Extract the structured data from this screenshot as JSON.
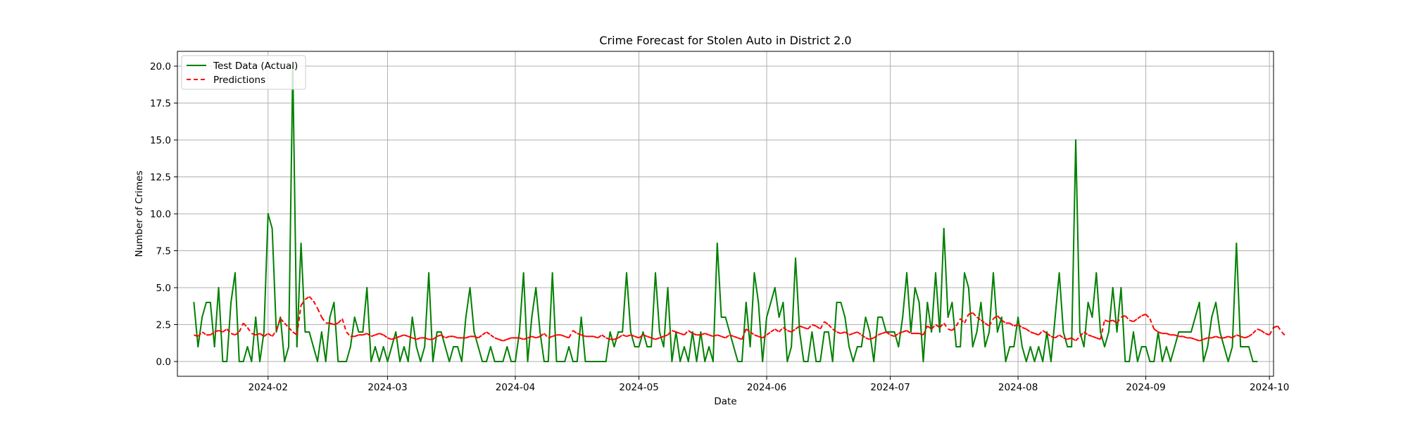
{
  "chart_data": {
    "type": "line",
    "title": "Crime Forecast for Stolen Auto in District 2.0",
    "xlabel": "Date",
    "ylabel": "Number of Crimes",
    "x_start": "2024-01-14",
    "x_end": "2024-09-22",
    "xlim": [
      "2024-01-10",
      "2024-10-02"
    ],
    "ylim": [
      -1.0,
      21.0
    ],
    "x_ticks": [
      "2024-02-01",
      "2024-03-01",
      "2024-04-01",
      "2024-05-01",
      "2024-06-01",
      "2024-07-01",
      "2024-08-01",
      "2024-09-01",
      "2024-10-01"
    ],
    "x_tick_labels": [
      "2024-02",
      "2024-03",
      "2024-04",
      "2024-05",
      "2024-06",
      "2024-07",
      "2024-08",
      "2024-09",
      "2024-10"
    ],
    "y_ticks": [
      0.0,
      2.5,
      5.0,
      7.5,
      10.0,
      12.5,
      15.0,
      17.5,
      20.0
    ],
    "y_tick_labels": [
      "0.0",
      "2.5",
      "5.0",
      "7.5",
      "10.0",
      "12.5",
      "15.0",
      "17.5",
      "20.0"
    ],
    "grid": true,
    "legend": "top-left",
    "series": [
      {
        "name": "Test Data (Actual)",
        "color": "#008000",
        "style": "solid",
        "values": [
          4,
          1,
          3,
          4,
          4,
          1,
          5,
          0,
          0,
          4,
          6,
          0,
          0,
          1,
          0,
          3,
          0,
          2,
          10,
          9,
          2,
          3,
          0,
          1,
          20,
          1,
          8,
          2,
          2,
          1,
          0,
          2,
          0,
          3,
          4,
          0,
          0,
          0,
          1,
          3,
          2,
          2,
          5,
          0,
          1,
          0,
          1,
          0,
          1,
          2,
          0,
          1,
          0,
          3,
          1,
          0,
          1,
          6,
          0,
          2,
          2,
          1,
          0,
          1,
          1,
          0,
          3,
          5,
          2,
          1,
          0,
          0,
          1,
          0,
          0,
          0,
          1,
          0,
          0,
          2,
          6,
          0,
          3,
          5,
          2,
          0,
          0,
          6,
          0,
          0,
          0,
          1,
          0,
          0,
          3,
          0,
          0,
          0,
          0,
          0,
          0,
          2,
          1,
          2,
          2,
          6,
          2,
          1,
          1,
          2,
          1,
          1,
          6,
          2,
          1,
          5,
          0,
          2,
          0,
          1,
          0,
          2,
          0,
          2,
          0,
          1,
          0,
          8,
          3,
          3,
          2,
          1,
          0,
          0,
          4,
          1,
          6,
          4,
          0,
          3,
          4,
          5,
          3,
          4,
          0,
          1,
          7,
          2,
          0,
          0,
          2,
          0,
          0,
          2,
          2,
          0,
          4,
          4,
          3,
          1,
          0,
          1,
          1,
          3,
          2,
          0,
          3,
          3,
          2,
          2,
          2,
          1,
          3,
          6,
          2,
          5,
          4,
          0,
          4,
          2,
          6,
          2,
          9,
          3,
          4,
          1,
          1,
          6,
          5,
          1,
          2,
          4,
          1,
          2,
          6,
          2,
          3,
          0,
          1,
          1,
          3,
          1,
          0,
          1,
          0,
          1,
          0,
          2,
          0,
          3,
          6,
          2,
          1,
          1,
          15,
          2,
          1,
          4,
          3,
          6,
          2,
          1,
          2,
          5,
          2,
          5,
          0,
          0,
          2,
          0,
          1,
          1,
          0,
          0,
          2,
          0,
          1,
          0,
          1,
          2,
          2,
          2,
          2,
          3,
          4,
          0,
          1,
          3,
          4,
          2,
          1,
          0,
          1,
          8,
          1,
          1,
          1,
          0,
          0
        ]
      },
      {
        "name": "Predictions",
        "color": "#ff0000",
        "style": "dashed",
        "values": [
          1.8,
          1.7,
          2.0,
          1.8,
          1.8,
          2.0,
          2.1,
          2.0,
          2.2,
          1.9,
          1.8,
          2.0,
          2.6,
          2.3,
          1.9,
          1.8,
          1.9,
          1.7,
          1.9,
          1.7,
          2.1,
          2.9,
          2.6,
          2.3,
          2.0,
          1.8,
          3.8,
          4.2,
          4.4,
          4.1,
          3.6,
          3.0,
          2.6,
          2.6,
          2.5,
          2.6,
          2.9,
          2.0,
          1.7,
          1.7,
          1.8,
          1.8,
          1.9,
          1.7,
          1.8,
          1.9,
          1.8,
          1.6,
          1.5,
          1.6,
          1.7,
          1.8,
          1.7,
          1.6,
          1.5,
          1.6,
          1.6,
          1.5,
          1.5,
          1.7,
          1.8,
          1.6,
          1.7,
          1.7,
          1.6,
          1.6,
          1.6,
          1.7,
          1.7,
          1.6,
          1.8,
          2.0,
          1.8,
          1.6,
          1.5,
          1.4,
          1.5,
          1.6,
          1.6,
          1.6,
          1.5,
          1.6,
          1.7,
          1.6,
          1.7,
          1.9,
          1.6,
          1.7,
          1.8,
          1.8,
          1.7,
          1.6,
          2.1,
          1.9,
          1.8,
          1.7,
          1.7,
          1.7,
          1.6,
          1.8,
          1.6,
          1.5,
          1.5,
          1.6,
          1.8,
          1.7,
          1.8,
          1.7,
          1.6,
          1.8,
          1.7,
          1.6,
          1.5,
          1.6,
          1.7,
          1.8,
          2.1,
          2.0,
          1.9,
          1.8,
          2.1,
          1.9,
          1.8,
          1.8,
          1.9,
          1.8,
          1.7,
          1.8,
          1.7,
          1.6,
          1.8,
          1.7,
          1.6,
          1.5,
          2.2,
          2.0,
          1.8,
          1.7,
          1.6,
          1.8,
          2.0,
          2.2,
          2.0,
          2.3,
          2.1,
          2.0,
          2.2,
          2.4,
          2.3,
          2.2,
          2.5,
          2.4,
          2.2,
          2.7,
          2.5,
          2.2,
          2.0,
          1.9,
          2.0,
          1.8,
          1.9,
          2.0,
          1.8,
          1.6,
          1.5,
          1.6,
          1.8,
          1.9,
          2.0,
          1.8,
          1.7,
          1.9,
          2.0,
          2.1,
          1.9,
          1.9,
          1.9,
          1.8,
          2.4,
          2.2,
          2.5,
          2.3,
          2.6,
          2.2,
          2.1,
          2.4,
          2.9,
          2.6,
          3.2,
          3.3,
          3.0,
          2.8,
          2.6,
          2.4,
          2.9,
          3.1,
          2.8,
          2.6,
          2.6,
          2.4,
          2.5,
          2.3,
          2.2,
          2.0,
          1.9,
          1.8,
          2.1,
          1.9,
          1.7,
          1.6,
          1.8,
          1.6,
          1.5,
          1.6,
          1.4,
          1.7,
          2.0,
          1.8,
          1.7,
          1.6,
          1.5,
          2.8,
          2.7,
          2.8,
          2.6,
          3.0,
          3.1,
          2.8,
          2.7,
          2.9,
          3.1,
          3.2,
          2.9,
          2.2,
          2.0,
          1.9,
          1.9,
          1.8,
          1.8,
          1.7,
          1.7,
          1.6,
          1.6,
          1.5,
          1.4,
          1.5,
          1.6,
          1.6,
          1.7,
          1.6,
          1.6,
          1.7,
          1.6,
          1.8,
          1.7,
          1.6,
          1.7,
          1.9,
          2.2,
          2.1,
          1.9,
          1.8,
          2.3,
          2.4,
          2.0,
          1.7
        ]
      }
    ]
  }
}
